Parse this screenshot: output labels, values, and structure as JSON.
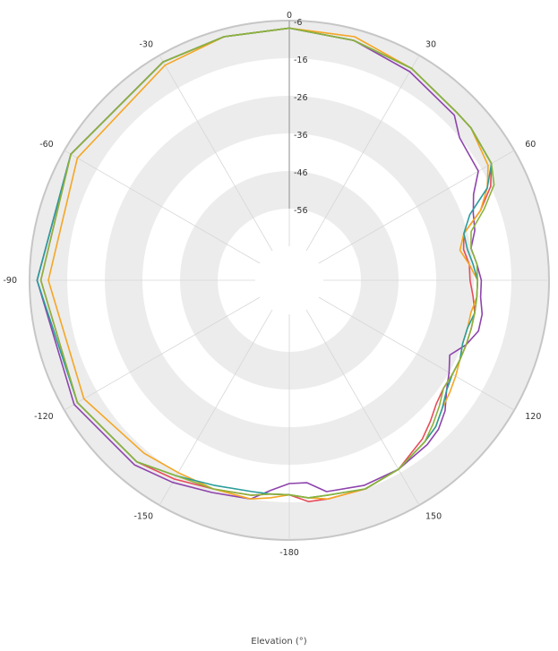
{
  "chart_data": {
    "type": "polar-line",
    "xlabel": "Elevation (°)",
    "angle_labels": [
      "0",
      "30",
      "60",
      "90",
      "120",
      "150",
      "-180",
      "-150",
      "-120",
      "-90",
      "-60",
      "-30"
    ],
    "angle_values": [
      0,
      30,
      60,
      90,
      120,
      150,
      180,
      -150,
      -120,
      -90,
      -60,
      -30
    ],
    "radial_labels": [
      "-6",
      "-16",
      "-26",
      "-36",
      "-46",
      "-56"
    ],
    "radial_values": [
      -6,
      -16,
      -26,
      -36,
      -46,
      -56
    ],
    "rlim": [
      -66,
      -6
    ],
    "angular_direction": "clockwise, 0 at top",
    "grid": true,
    "series": [
      {
        "color": "#8e44ad",
        "angles": [
          0,
          15,
          30,
          45,
          50,
          60,
          65,
          70,
          75,
          80,
          85,
          90,
          95,
          100,
          105,
          110,
          115,
          120,
          125,
          130,
          135,
          140,
          150,
          160,
          170,
          175,
          180,
          -175,
          -170,
          -160,
          -150,
          -140,
          -120,
          -90,
          -60,
          -30,
          -15
        ],
        "values": [
          -8,
          -9,
          -11,
          -13,
          -16,
          -17,
          -21,
          -23,
          -24,
          -26,
          -25,
          -24,
          -24,
          -23,
          -23,
          -25,
          -28,
          -26,
          -24,
          -21,
          -19,
          -18,
          -17,
          -17,
          -18,
          -21,
          -21,
          -19,
          -16,
          -15,
          -13,
          -11,
          -9,
          -8,
          -8,
          -8,
          -8
        ]
      },
      {
        "color": "#e84c5a",
        "angles": [
          0,
          15,
          30,
          45,
          50,
          60,
          65,
          70,
          75,
          80,
          85,
          90,
          95,
          100,
          105,
          110,
          115,
          120,
          125,
          130,
          135,
          140,
          150,
          160,
          170,
          175,
          180,
          -175,
          -170,
          -160,
          -150,
          -140,
          -120,
          -90,
          -60,
          -30,
          -15
        ],
        "values": [
          -8,
          -9,
          -10,
          -12,
          -12,
          -13,
          -16,
          -21,
          -27,
          -28,
          -27,
          -27,
          -26,
          -25,
          -25,
          -25,
          -25,
          -25,
          -25,
          -24,
          -22,
          -20,
          -17,
          -16,
          -16,
          -16,
          -18,
          -18,
          -17,
          -16,
          -14,
          -12,
          -10,
          -9,
          -8,
          -8,
          -8
        ]
      },
      {
        "color": "#f5a623",
        "angles": [
          0,
          15,
          30,
          45,
          50,
          60,
          65,
          70,
          75,
          80,
          85,
          90,
          95,
          100,
          105,
          110,
          115,
          120,
          125,
          130,
          135,
          140,
          150,
          160,
          170,
          175,
          180,
          -175,
          -170,
          -160,
          -150,
          -140,
          -120,
          -90,
          -60,
          -30,
          -15
        ],
        "values": [
          -8,
          -8,
          -10,
          -12,
          -12,
          -14,
          -17,
          -21,
          -27,
          -29,
          -27,
          -25,
          -25,
          -26,
          -26,
          -26,
          -25,
          -24,
          -23,
          -22,
          -20,
          -19,
          -17,
          -16,
          -16,
          -17,
          -18,
          -17,
          -16,
          -16,
          -16,
          -15,
          -12,
          -11,
          -10,
          -9,
          -8
        ]
      },
      {
        "color": "#2a9d9b",
        "angles": [
          0,
          15,
          30,
          45,
          50,
          60,
          65,
          70,
          75,
          80,
          85,
          90,
          95,
          100,
          105,
          110,
          115,
          120,
          125,
          130,
          135,
          140,
          150,
          160,
          170,
          175,
          180,
          -175,
          -170,
          -160,
          -150,
          -140,
          -120,
          -90,
          -60,
          -30,
          -15
        ],
        "values": [
          -8,
          -9,
          -10,
          -12,
          -12,
          -13,
          -17,
          -24,
          -27,
          -27,
          -26,
          -25,
          -25,
          -25,
          -26,
          -26,
          -25,
          -25,
          -24,
          -22,
          -20,
          -19,
          -17,
          -16,
          -17,
          -17,
          -18,
          -18,
          -18,
          -17,
          -15,
          -12,
          -10,
          -8,
          -8,
          -8,
          -8
        ]
      },
      {
        "color": "#8cb33a",
        "angles": [
          0,
          15,
          30,
          45,
          50,
          60,
          65,
          70,
          75,
          80,
          85,
          90,
          95,
          100,
          105,
          110,
          115,
          120,
          125,
          130,
          135,
          140,
          150,
          160,
          170,
          175,
          180,
          -175,
          -170,
          -160,
          -150,
          -140,
          -120,
          -90,
          -60,
          -30,
          -15
        ],
        "values": [
          -8,
          -9,
          -10,
          -12,
          -12,
          -13,
          -15,
          -20,
          -25,
          -26,
          -25,
          -25,
          -25,
          -25,
          -25,
          -25,
          -25,
          -25,
          -25,
          -23,
          -21,
          -19,
          -17,
          -16,
          -17,
          -17,
          -18,
          -18,
          -17,
          -16,
          -15,
          -12,
          -10,
          -9,
          -8,
          -8,
          -8
        ]
      }
    ]
  }
}
